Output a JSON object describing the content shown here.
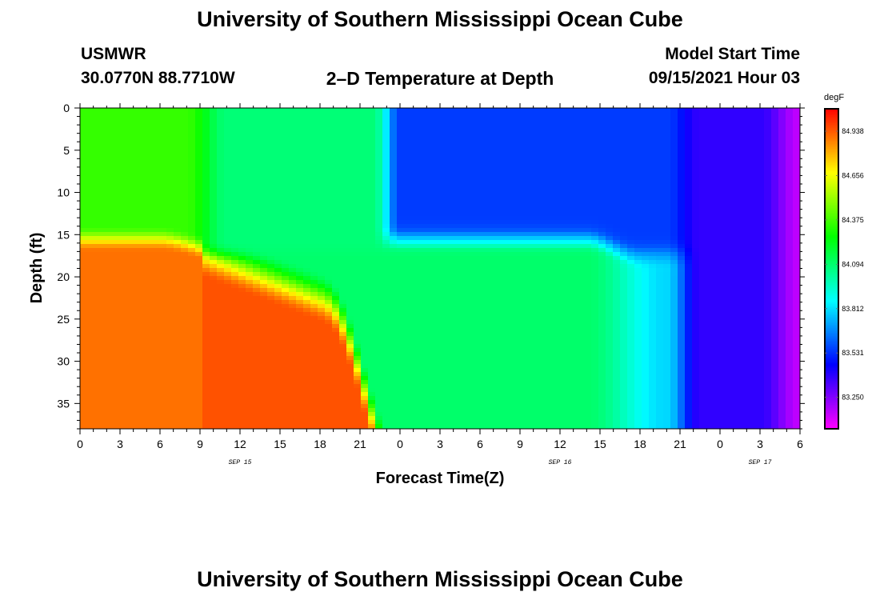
{
  "page": {
    "title_top": "University of Southern Mississippi Ocean Cube",
    "title_bottom": "University of Southern Mississippi Ocean Cube",
    "station_name": "USMWR",
    "station_coords": "30.0770N  88.7710W",
    "plot_title": "2–D Temperature at Depth",
    "model_start_label": "Model Start Time",
    "model_start_value": "09/15/2021 Hour 03"
  },
  "chart_data": {
    "type": "heatmap",
    "title": "2–D Temperature at Depth",
    "xlabel": "Forecast Time(Z)",
    "ylabel": "Depth (ft)",
    "x_range_hours": [
      0,
      54
    ],
    "x_ticks": [
      {
        "hour": 0,
        "label": "0"
      },
      {
        "hour": 3,
        "label": "3"
      },
      {
        "hour": 6,
        "label": "6"
      },
      {
        "hour": 9,
        "label": "9"
      },
      {
        "hour": 12,
        "label": "12"
      },
      {
        "hour": 15,
        "label": "15"
      },
      {
        "hour": 18,
        "label": "18"
      },
      {
        "hour": 21,
        "label": "21"
      },
      {
        "hour": 24,
        "label": "0"
      },
      {
        "hour": 27,
        "label": "3"
      },
      {
        "hour": 30,
        "label": "6"
      },
      {
        "hour": 33,
        "label": "9"
      },
      {
        "hour": 36,
        "label": "12"
      },
      {
        "hour": 39,
        "label": "15"
      },
      {
        "hour": 42,
        "label": "18"
      },
      {
        "hour": 45,
        "label": "21"
      },
      {
        "hour": 48,
        "label": "0"
      },
      {
        "hour": 51,
        "label": "3"
      },
      {
        "hour": 54,
        "label": "6"
      }
    ],
    "day_labels": [
      {
        "hour": 12,
        "label": "SEP 15"
      },
      {
        "hour": 36,
        "label": "SEP 16"
      },
      {
        "hour": 51,
        "label": "SEP 17"
      }
    ],
    "y_range_ft": [
      0,
      38
    ],
    "y_ticks": [
      0,
      5,
      10,
      15,
      20,
      25,
      30,
      35
    ],
    "colorbar": {
      "unit": "degF",
      "min": 83.05,
      "max": 85.08,
      "tick_values": [
        84.938,
        84.656,
        84.375,
        84.094,
        83.812,
        83.531,
        83.25
      ]
    },
    "temperature_regimes": [
      {
        "hours": [
          0,
          9
        ],
        "depth_ft": [
          0,
          15
        ],
        "degF": 84.35
      },
      {
        "hours": [
          9,
          23
        ],
        "depth_ft": [
          0,
          17
        ],
        "degF": 84.1
      },
      {
        "hours": [
          0,
          12
        ],
        "depth_ft": [
          18,
          38
        ],
        "degF": 84.95
      },
      {
        "hours": [
          23,
          45
        ],
        "depth_ft": [
          0,
          14
        ],
        "degF": 83.55
      },
      {
        "hours": [
          24,
          45
        ],
        "depth_ft": [
          20,
          38
        ],
        "degF": 84.1
      },
      {
        "hours": [
          46,
          54
        ],
        "depth_ft": [
          0,
          38
        ],
        "degF": 83.3
      },
      {
        "hours": [
          53,
          54
        ],
        "depth_ft": [
          0,
          38
        ],
        "degF": 83.15
      }
    ]
  }
}
